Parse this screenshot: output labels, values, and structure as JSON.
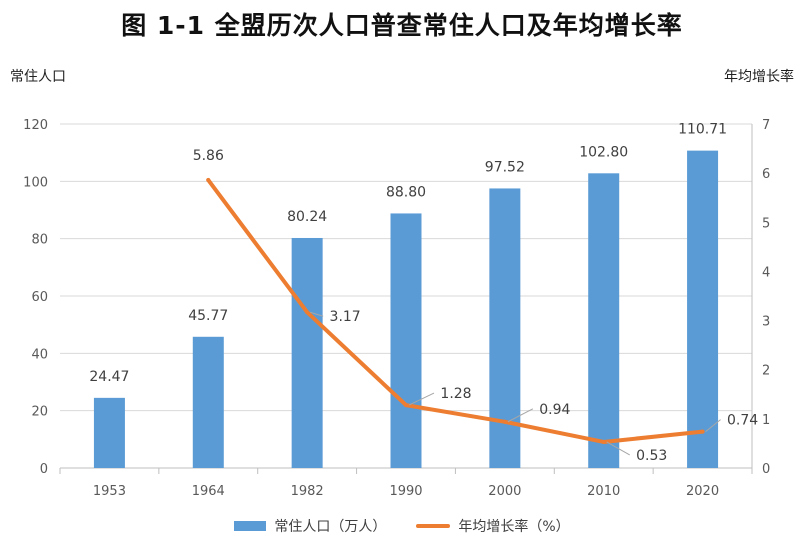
{
  "title": "图 1-1  全盟历次人口普查常住人口及年均增长率",
  "left_axis_title": "常住人口",
  "right_axis_title": "年均增长率",
  "colors": {
    "bar": "#5B9BD5",
    "line": "#ED7D31",
    "grid": "#D9D9D9",
    "axis": "#BFBFBF"
  },
  "chart_data": {
    "type": "bar",
    "categories": [
      "1953",
      "1964",
      "1982",
      "1990",
      "2000",
      "2010",
      "2020"
    ],
    "series": [
      {
        "name": "常住人口（万人）",
        "type": "bar",
        "axis": "left",
        "values": [
          24.47,
          45.77,
          80.24,
          88.8,
          97.52,
          102.8,
          110.71
        ],
        "labels": [
          "24.47",
          "45.77",
          "80.24",
          "88.80",
          "97.52",
          "102.80",
          "110.71"
        ]
      },
      {
        "name": "年均增长率（%）",
        "type": "line",
        "axis": "right",
        "values": [
          null,
          5.86,
          3.17,
          1.28,
          0.94,
          0.53,
          0.74
        ],
        "labels": [
          "",
          "5.86",
          "3.17",
          "1.28",
          "0.94",
          "0.53",
          "0.74"
        ]
      }
    ],
    "ylim_left": [
      0,
      120
    ],
    "yticks_left": [
      0,
      20,
      40,
      60,
      80,
      100,
      120
    ],
    "ylim_right": [
      0,
      7
    ],
    "yticks_right": [
      0,
      1,
      2,
      3,
      4,
      5,
      6,
      7
    ],
    "grid": true,
    "legend_position": "bottom"
  }
}
